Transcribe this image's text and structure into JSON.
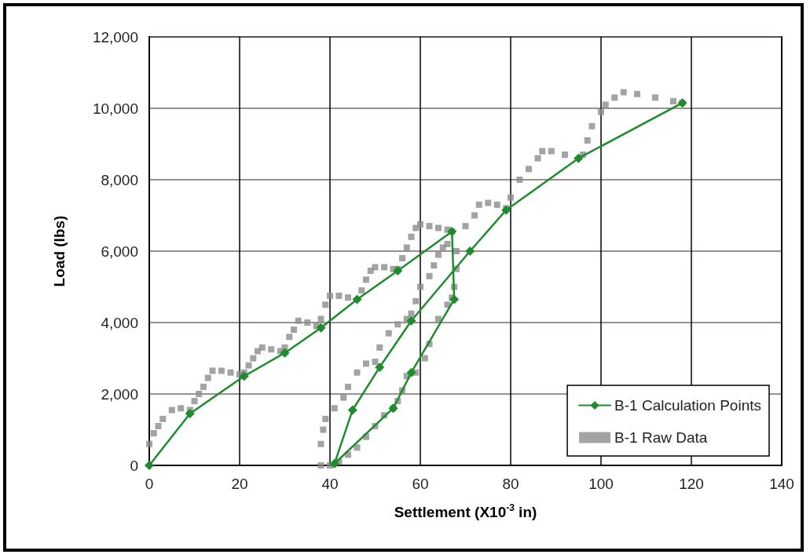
{
  "chart_data": {
    "type": "line",
    "xlabel": "Settlement (X10$^{-3}$ in)",
    "ylabel": "Load (lbs)",
    "xlim": [
      0,
      140
    ],
    "xticks": [
      0,
      20,
      40,
      60,
      80,
      100,
      120,
      140
    ],
    "ylim": [
      0,
      12000
    ],
    "yticks": [
      {
        "value": 0,
        "label": "0"
      },
      {
        "value": 2000,
        "label": "2,000"
      },
      {
        "value": 4000,
        "label": "4,000"
      },
      {
        "value": 6000,
        "label": "6,000"
      },
      {
        "value": 8000,
        "label": "8,000"
      },
      {
        "value": 10000,
        "label": "10,000"
      },
      {
        "value": 12000,
        "label": "12,000"
      }
    ],
    "grid": true,
    "legend": "bottom right",
    "series": [
      {
        "name": "B-1 Calculation Points",
        "type": "line",
        "marker": "diamond",
        "line_style": "solid",
        "color": "#1e8c2e",
        "x": [
          0,
          9,
          21,
          30,
          38,
          46,
          55,
          67,
          67.5,
          58,
          54,
          41,
          45,
          51,
          58,
          71,
          79,
          95,
          118
        ],
        "values": [
          0,
          1450,
          2500,
          3150,
          3850,
          4650,
          5450,
          6550,
          4650,
          2600,
          1600,
          50,
          1550,
          2750,
          4050,
          6000,
          7150,
          8600,
          10150
        ]
      },
      {
        "name": "B-1 Raw Data",
        "type": "scatter",
        "marker": "square",
        "color": "#8c8c8c",
        "x": [
          0,
          1,
          2,
          3,
          5,
          7,
          9,
          10,
          11,
          12,
          13,
          14,
          16,
          18,
          20,
          21,
          22,
          23,
          24,
          25,
          27,
          29,
          30,
          31,
          32,
          33,
          35,
          37,
          38,
          39,
          40,
          42,
          44,
          46,
          47,
          48,
          49,
          50,
          52,
          54,
          55,
          56,
          57,
          58,
          59,
          60,
          62,
          64,
          66,
          67,
          68,
          68,
          67.5,
          67,
          66,
          64,
          62,
          61,
          59,
          57,
          56,
          55,
          54,
          52,
          50,
          48,
          46,
          44,
          42,
          40,
          38,
          38,
          38.5,
          39,
          41,
          43,
          44,
          46,
          48,
          50,
          51,
          53,
          55,
          57,
          58,
          59,
          60,
          62,
          63,
          64,
          65,
          66,
          70,
          72,
          73,
          75,
          77,
          79,
          80,
          82,
          84,
          86,
          87,
          89,
          92,
          95,
          96,
          97,
          98,
          100,
          101,
          103,
          105,
          108,
          112,
          116,
          118
        ],
        "values": [
          600,
          900,
          1100,
          1300,
          1550,
          1600,
          1550,
          1800,
          2000,
          2200,
          2450,
          2650,
          2650,
          2600,
          2550,
          2600,
          2800,
          3000,
          3200,
          3300,
          3250,
          3200,
          3300,
          3600,
          3800,
          4050,
          4000,
          3900,
          4100,
          4500,
          4750,
          4750,
          4700,
          null,
          4900,
          5200,
          5450,
          5550,
          5550,
          5500,
          5500,
          5800,
          6100,
          6400,
          6650,
          6750,
          6700,
          6650,
          6600,
          6550,
          6000,
          5500,
          5000,
          4700,
          4500,
          4100,
          3400,
          3000,
          2600,
          2500,
          2100,
          1800,
          1600,
          1400,
          1100,
          800,
          500,
          300,
          100,
          0,
          0,
          600,
          1000,
          1300,
          1600,
          1900,
          2200,
          2600,
          2850,
          2900,
          3300,
          3700,
          3950,
          4100,
          4250,
          4600,
          5000,
          5300,
          5600,
          5900,
          6100,
          6200,
          6700,
          7000,
          7300,
          7350,
          7300,
          7200,
          7500,
          8000,
          8300,
          8600,
          8800,
          8800,
          8700,
          null,
          8700,
          9100,
          9500,
          9900,
          10100,
          10300,
          10450,
          10400,
          10300,
          10200,
          10150
        ]
      }
    ]
  }
}
